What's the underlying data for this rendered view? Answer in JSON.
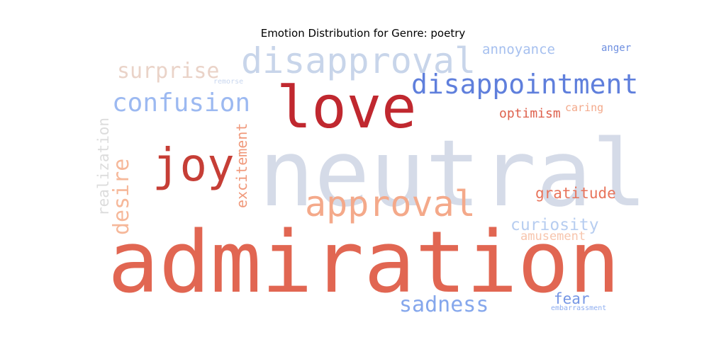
{
  "chart_data": {
    "type": "wordcloud",
    "title": "Emotion Distribution for Genre: poetry",
    "words": [
      {
        "text": "neutral",
        "color": "#d5dbe8"
      },
      {
        "text": "admiration",
        "color": "#e16652"
      },
      {
        "text": "love",
        "color": "#c0282f"
      },
      {
        "text": "disapproval",
        "color": "#c8d5ea"
      },
      {
        "text": "disappointment",
        "color": "#5f7fdc"
      },
      {
        "text": "joy",
        "color": "#c63e36"
      },
      {
        "text": "approval",
        "color": "#f4a98a"
      },
      {
        "text": "confusion",
        "color": "#9cb9f1"
      },
      {
        "text": "surprise",
        "color": "#ead3c8"
      },
      {
        "text": "sadness",
        "color": "#85a7ec"
      },
      {
        "text": "desire",
        "color": "#f6b89a"
      },
      {
        "text": "realization",
        "color": "#dcdcdc"
      },
      {
        "text": "excitement",
        "color": "#f0997b"
      },
      {
        "text": "gratitude",
        "color": "#e8745b"
      },
      {
        "text": "curiosity",
        "color": "#b7cdf0"
      },
      {
        "text": "annoyance",
        "color": "#a6c0ef"
      },
      {
        "text": "optimism",
        "color": "#de614d"
      },
      {
        "text": "amusement",
        "color": "#f7c5ad"
      },
      {
        "text": "fear",
        "color": "#7596e4"
      },
      {
        "text": "caring",
        "color": "#f3a98b"
      },
      {
        "text": "anger",
        "color": "#6e8fe0"
      },
      {
        "text": "embarrassment",
        "color": "#8faef0"
      },
      {
        "text": "remorse",
        "color": "#c9d7ef"
      }
    ]
  }
}
